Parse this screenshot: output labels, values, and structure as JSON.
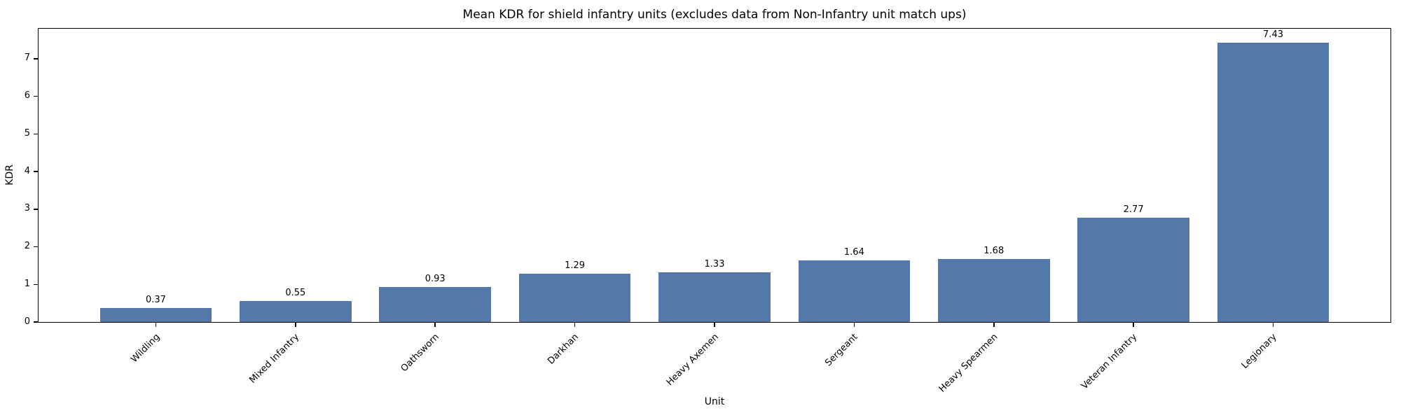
{
  "chart_data": {
    "type": "bar",
    "title": "Mean KDR for shield infantry units (excludes data from Non-Infantry unit match ups)",
    "xlabel": "Unit",
    "ylabel": "KDR",
    "categories": [
      "Wildling",
      "Mixed Infantry",
      "Oathsworn",
      "Darkhan",
      "Heavy Axemen",
      "Sergeant",
      "Heavy Spearmen",
      "Veteran Infantry",
      "Legionary"
    ],
    "values": [
      0.37,
      0.55,
      0.93,
      1.29,
      1.33,
      1.64,
      1.68,
      2.77,
      7.43
    ],
    "value_labels": [
      "0.37",
      "0.55",
      "0.93",
      "1.29",
      "1.33",
      "1.64",
      "1.68",
      "2.77",
      "7.43"
    ],
    "yticks": [
      0,
      1,
      2,
      3,
      4,
      5,
      6,
      7
    ],
    "ylim": [
      0,
      7.8
    ],
    "xlim_units": [
      -0.84,
      8.84
    ],
    "bar_width_units": 0.8,
    "bar_color": "#5578AA",
    "axis_color": "#000000",
    "grid": false,
    "legend": null,
    "x_tick_label_rotation_deg": 45
  }
}
